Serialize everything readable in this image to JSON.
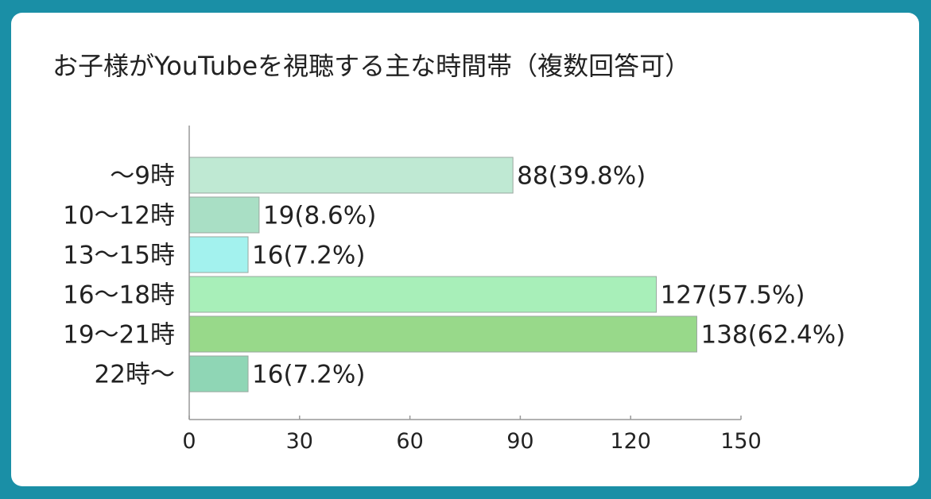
{
  "chart_data": {
    "type": "bar",
    "orientation": "horizontal",
    "title": "お子様がYouTubeを視聴する主な時間帯（複数回答可）",
    "categories": [
      "～9時",
      "10～12時",
      "13～15時",
      "16～18時",
      "19～21時",
      "22時～"
    ],
    "values": [
      88,
      19,
      16,
      127,
      138,
      16
    ],
    "value_labels": [
      "88(39.8%)",
      "19(8.6%)",
      "16(7.2%)",
      "127(57.5%)",
      "138(62.4%)",
      "16(7.2%)"
    ],
    "colors": [
      "#bfe9d3",
      "#a9dfc5",
      "#a3f2ee",
      "#a8efb9",
      "#98d98a",
      "#8fd6b5"
    ],
    "xlim": [
      0,
      150
    ],
    "xticks": [
      0,
      30,
      60,
      90,
      120,
      150
    ],
    "grid": false,
    "legend": "none"
  }
}
